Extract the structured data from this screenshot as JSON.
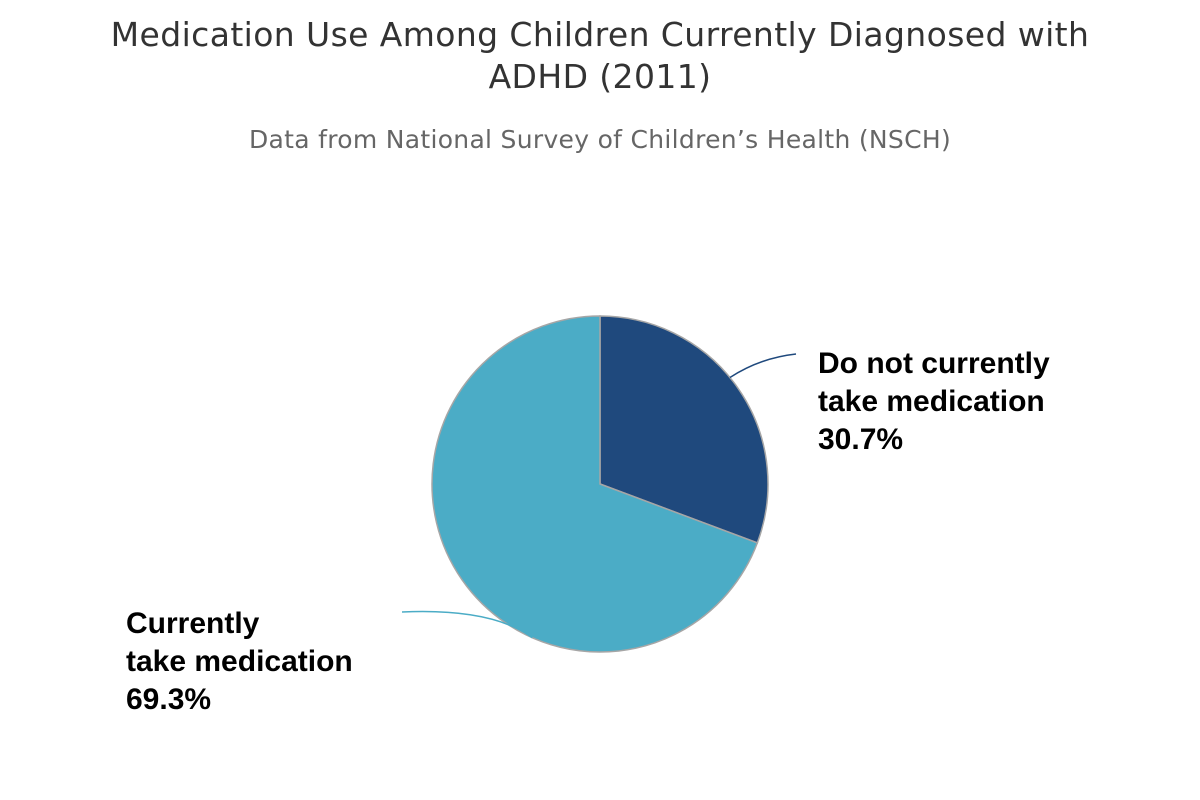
{
  "chart_data": {
    "type": "pie",
    "title": "Medication Use Among Children Currently Diagnosed with ADHD (2011)",
    "subtitle": "Data from National Survey of Children’s Health (NSCH)",
    "slices": [
      {
        "label_lines": [
          "Currently",
          "take medication"
        ],
        "value": 69.3,
        "value_label": "69.3%",
        "color": "#4bacc6"
      },
      {
        "label_lines": [
          "Do not currently",
          "take medication"
        ],
        "value": 30.7,
        "value_label": "30.7%",
        "color": "#1f497d"
      }
    ],
    "legend": "none"
  }
}
